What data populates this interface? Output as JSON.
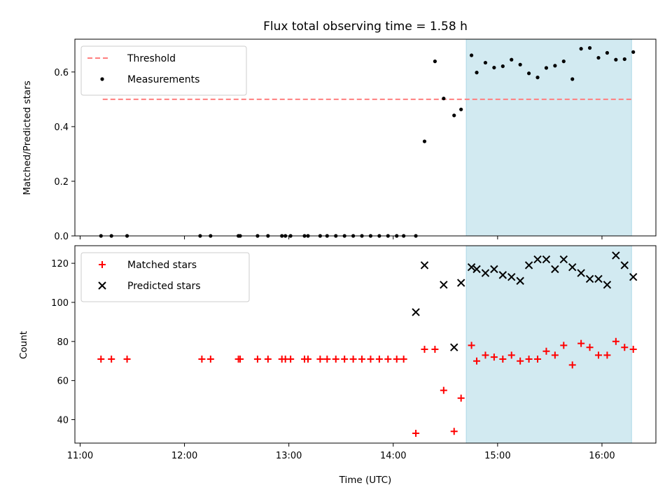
{
  "chart_data": [
    {
      "type": "scatter",
      "title": "Flux total observing time = 1.58 h",
      "xlabel": "",
      "ylabel": "Matched/Predicted stars",
      "ylim": [
        0,
        0.72
      ],
      "yticks": [
        0.0,
        0.2,
        0.4,
        0.6
      ],
      "yticklabels": [
        "0.0",
        "0.2",
        "0.4",
        "0.6"
      ],
      "xlim": [
        "10:57",
        "16:31"
      ],
      "legend_position": "upper-left",
      "highlight_span": {
        "start": "14:42",
        "end": "16:17",
        "color": "#add8e6"
      },
      "threshold": {
        "name": "Threshold",
        "value": 0.5,
        "x_start": "11:13",
        "x_end": "16:17",
        "color": "#ff7f7f"
      },
      "series": [
        {
          "name": "Measurements",
          "color": "#000000",
          "x": [
            "11:12",
            "11:18",
            "11:27",
            "12:09",
            "12:15",
            "12:31",
            "12:32",
            "12:42",
            "12:48",
            "12:56",
            "12:58",
            "13:01",
            "13:09",
            "13:11",
            "13:18",
            "13:22",
            "13:27",
            "13:32",
            "13:37",
            "13:42",
            "13:47",
            "13:52",
            "13:57",
            "14:02",
            "14:06",
            "14:13",
            "14:18",
            "14:24",
            "14:29",
            "14:35",
            "14:39",
            "14:45",
            "14:48",
            "14:53",
            "14:58",
            "15:03",
            "15:08",
            "15:13",
            "15:18",
            "15:23",
            "15:28",
            "15:33",
            "15:38",
            "15:43",
            "15:48",
            "15:53",
            "15:58",
            "16:03",
            "16:08",
            "16:13",
            "16:18"
          ],
          "y": [
            0,
            0,
            0,
            0,
            0,
            0,
            0,
            0,
            0,
            0,
            0,
            0,
            0,
            0,
            0,
            0,
            0,
            0,
            0,
            0,
            0,
            0,
            0,
            0,
            0,
            0,
            0.346,
            0.639,
            0.503,
            0.441,
            0.463,
            0.661,
            0.598,
            0.634,
            0.616,
            0.621,
            0.645,
            0.627,
            0.595,
            0.58,
            0.615,
            0.623,
            0.639,
            0.574,
            0.685,
            0.688,
            0.652,
            0.67,
            0.645,
            0.647,
            0.673
          ]
        }
      ]
    },
    {
      "type": "scatter",
      "title": "",
      "xlabel": "Time (UTC)",
      "ylabel": "Count",
      "ylim": [
        28,
        129
      ],
      "yticks": [
        40,
        60,
        80,
        100,
        120
      ],
      "yticklabels": [
        "40",
        "60",
        "80",
        "100",
        "120"
      ],
      "xlim": [
        "10:57",
        "16:31"
      ],
      "xticks": [
        "11:00",
        "12:00",
        "13:00",
        "14:00",
        "15:00",
        "16:00"
      ],
      "xticklabels": [
        "11:00",
        "12:00",
        "13:00",
        "14:00",
        "15:00",
        "16:00"
      ],
      "legend_position": "upper-left",
      "highlight_span": {
        "start": "14:42",
        "end": "16:17",
        "color": "#add8e6"
      },
      "series": [
        {
          "name": "Matched stars",
          "color": "#ff0000",
          "marker": "plus",
          "x": [
            "11:12",
            "11:18",
            "11:27",
            "12:10",
            "12:15",
            "12:31",
            "12:32",
            "12:42",
            "12:48",
            "12:56",
            "12:58",
            "13:01",
            "13:09",
            "13:11",
            "13:18",
            "13:22",
            "13:27",
            "13:32",
            "13:37",
            "13:42",
            "13:47",
            "13:52",
            "13:57",
            "14:02",
            "14:06",
            "14:13",
            "14:18",
            "14:24",
            "14:29",
            "14:35",
            "14:39",
            "14:45",
            "14:48",
            "14:53",
            "14:58",
            "15:03",
            "15:08",
            "15:13",
            "15:18",
            "15:23",
            "15:28",
            "15:33",
            "15:38",
            "15:43",
            "15:48",
            "15:53",
            "15:58",
            "16:03",
            "16:08",
            "16:13",
            "16:18"
          ],
          "y": [
            71,
            71,
            71,
            71,
            71,
            71,
            71,
            71,
            71,
            71,
            71,
            71,
            71,
            71,
            71,
            71,
            71,
            71,
            71,
            71,
            71,
            71,
            71,
            71,
            71,
            33,
            76,
            76,
            55,
            34,
            51,
            78,
            70,
            73,
            72,
            71,
            73,
            70,
            71,
            71,
            75,
            73,
            78,
            68,
            79,
            77,
            73,
            73,
            80,
            77,
            76
          ]
        },
        {
          "name": "Predicted stars",
          "color": "#000000",
          "marker": "x",
          "x": [
            "14:13",
            "14:18",
            "14:29",
            "14:35",
            "14:39",
            "14:45",
            "14:48",
            "14:53",
            "14:58",
            "15:03",
            "15:08",
            "15:13",
            "15:18",
            "15:23",
            "15:28",
            "15:33",
            "15:38",
            "15:43",
            "15:48",
            "15:53",
            "15:58",
            "16:03",
            "16:08",
            "16:13",
            "16:18"
          ],
          "y": [
            95,
            119,
            109,
            77,
            110,
            118,
            117,
            115,
            117,
            114,
            113,
            111,
            119,
            122,
            122,
            117,
            122,
            118,
            115,
            112,
            112,
            109,
            124,
            119,
            113
          ]
        }
      ]
    }
  ]
}
